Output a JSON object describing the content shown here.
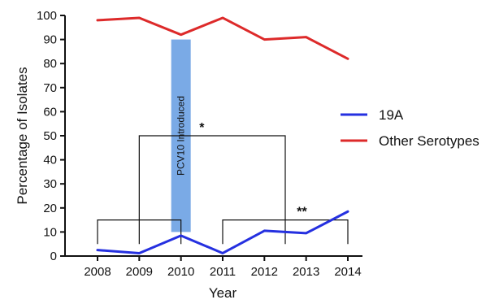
{
  "chart_data": {
    "type": "line",
    "x": [
      2008,
      2009,
      2010,
      2011,
      2012,
      2013,
      2014
    ],
    "x_tick_labels": [
      "2008",
      "2009",
      "2010",
      "2011",
      "2012",
      "2013",
      "2014"
    ],
    "y_ticks": [
      0,
      10,
      20,
      30,
      40,
      50,
      60,
      70,
      80,
      90,
      100
    ],
    "ylim": [
      0,
      100
    ],
    "xlabel": "Year",
    "ylabel": "Percentage of Isolates",
    "grid": false,
    "legend_position": "right",
    "series": [
      {
        "name": "19A",
        "color": "#2530e0",
        "values": [
          2.5,
          1.2,
          8.5,
          1.2,
          10.5,
          9.5,
          18.5
        ]
      },
      {
        "name": "Other Serotypes",
        "color": "#dd2a2a",
        "values": [
          98,
          99,
          92,
          99,
          90,
          91,
          82
        ]
      }
    ],
    "annotations": {
      "intervention": {
        "label": "PCV10 Introduced",
        "x": 2010,
        "y_range": [
          10,
          90
        ],
        "color": "#7aaae6"
      },
      "brackets": [
        {
          "label": "",
          "from_x": 2008,
          "to_x": 2010,
          "y": 15
        },
        {
          "label": "",
          "from_x": 2011,
          "to_x": 2014,
          "y": 15
        },
        {
          "label": "*",
          "from_x": 2009,
          "to_x": 2012.5,
          "y": 50
        }
      ],
      "significance_marks": [
        {
          "label": "*",
          "x": 2010.5,
          "y": 50
        },
        {
          "label": "**",
          "x": 2012.9,
          "y": 15
        }
      ]
    }
  }
}
